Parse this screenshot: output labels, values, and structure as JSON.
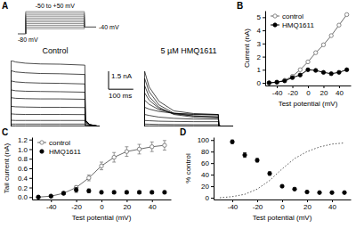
{
  "chart_data": [
    {
      "type": "protocol",
      "label": "A",
      "x": [
        -40,
        0,
        300,
        360
      ],
      "hold": -80,
      "steps": [
        -50,
        -40,
        -30,
        -20,
        -10,
        0,
        10,
        20,
        30,
        40,
        50
      ],
      "tail": -40,
      "hold_label": "-80 mV",
      "step_label": "-50 to +50 mV",
      "tail_label": "-40 mV"
    },
    {
      "type": "line",
      "title": "Control",
      "tick_labels": false,
      "color": "#000000",
      "scale_bar": {
        "y": 1.5,
        "y_label": "1.5 nA",
        "x": 100,
        "x_label": "100 ms"
      },
      "x": [
        0,
        2,
        20,
        60,
        120,
        200,
        300,
        302,
        320,
        360
      ],
      "series": [
        {
          "values": [
            0,
            0,
            0,
            0,
            0,
            0,
            0,
            0,
            0,
            0
          ]
        },
        {
          "values": [
            0,
            0.05,
            0.05,
            0.05,
            0.05,
            0.05,
            0.05,
            0.01,
            0,
            0
          ]
        },
        {
          "values": [
            0,
            0.2,
            0.2,
            0.2,
            0.2,
            0.2,
            0.2,
            0.04,
            0.01,
            0
          ]
        },
        {
          "values": [
            0,
            0.52,
            0.5,
            0.5,
            0.5,
            0.5,
            0.5,
            0.1,
            0.03,
            0
          ]
        },
        {
          "values": [
            0,
            1.05,
            1.02,
            1.0,
            1.0,
            1.0,
            0.99,
            0.2,
            0.06,
            0
          ]
        },
        {
          "values": [
            0,
            1.68,
            1.64,
            1.62,
            1.6,
            1.6,
            1.58,
            0.33,
            0.1,
            0
          ]
        },
        {
          "values": [
            0,
            2.4,
            2.35,
            2.32,
            2.3,
            2.3,
            2.27,
            0.42,
            0.13,
            0
          ]
        },
        {
          "values": [
            0,
            3.05,
            2.98,
            2.94,
            2.92,
            2.9,
            2.86,
            0.48,
            0.14,
            0
          ]
        },
        {
          "values": [
            0,
            3.8,
            3.72,
            3.66,
            3.62,
            3.6,
            3.55,
            0.5,
            0.15,
            0
          ]
        },
        {
          "values": [
            0,
            4.65,
            4.55,
            4.48,
            4.42,
            4.4,
            4.34,
            0.52,
            0.16,
            0
          ]
        },
        {
          "values": [
            0,
            5.5,
            5.38,
            5.28,
            5.22,
            5.2,
            5.12,
            0.54,
            0.16,
            0
          ]
        }
      ]
    },
    {
      "type": "line",
      "title": "5 µM HMQ1611",
      "tick_labels": false,
      "color": "#000000",
      "x": [
        0,
        2,
        20,
        60,
        120,
        200,
        300,
        302,
        320,
        360
      ],
      "series": [
        {
          "values": [
            0,
            0,
            0,
            0,
            0,
            0,
            0,
            0,
            0,
            0
          ]
        },
        {
          "values": [
            0,
            0.05,
            0.05,
            0.05,
            0.05,
            0.05,
            0.05,
            0.01,
            0,
            0
          ]
        },
        {
          "values": [
            0,
            0.2,
            0.19,
            0.17,
            0.16,
            0.15,
            0.15,
            0.03,
            0.01,
            0
          ]
        },
        {
          "values": [
            0,
            0.5,
            0.48,
            0.44,
            0.42,
            0.4,
            0.4,
            0.05,
            0.02,
            0
          ]
        },
        {
          "values": [
            0,
            1.0,
            0.92,
            0.78,
            0.68,
            0.62,
            0.6,
            0.05,
            0.02,
            0
          ]
        },
        {
          "values": [
            0,
            1.6,
            1.45,
            1.25,
            1.1,
            1.02,
            1.0,
            0.05,
            0.02,
            0
          ]
        },
        {
          "values": [
            0,
            2.2,
            1.85,
            1.4,
            1.1,
            1.0,
            0.95,
            0.05,
            0.02,
            0
          ]
        },
        {
          "values": [
            0,
            2.8,
            2.2,
            1.5,
            1.05,
            0.88,
            0.8,
            0.05,
            0.02,
            0
          ]
        },
        {
          "values": [
            0,
            3.4,
            2.5,
            1.6,
            1.0,
            0.78,
            0.7,
            0.05,
            0.02,
            0
          ]
        },
        {
          "values": [
            0,
            4.0,
            2.9,
            1.8,
            1.1,
            0.88,
            0.8,
            0.05,
            0.02,
            0
          ]
        },
        {
          "values": [
            0,
            4.6,
            3.3,
            2.1,
            1.3,
            1.08,
            1.0,
            0.05,
            0.02,
            0
          ]
        }
      ]
    },
    {
      "type": "line",
      "label": "B",
      "x_label": "Test potential (mV)",
      "y_label": "Current (nA)",
      "x": [
        -50,
        -40,
        -30,
        -20,
        -10,
        0,
        10,
        20,
        30,
        40,
        50
      ],
      "xlim": [
        -55,
        55
      ],
      "xticks": [
        -40,
        -20,
        0,
        20,
        40
      ],
      "ylim": [
        -0.2,
        5.5
      ],
      "yticks": [
        0,
        1,
        2,
        3,
        4,
        5
      ],
      "legend": "top-left",
      "series": [
        {
          "name": "control",
          "color": "#6b6b6b",
          "marker": "open_circle",
          "line_style": "solid",
          "values": [
            0,
            0.05,
            0.2,
            0.5,
            1.0,
            1.6,
            2.3,
            2.9,
            3.6,
            4.4,
            5.2
          ]
        },
        {
          "name": "HMQ1611",
          "color": "#000000",
          "marker": "circle",
          "line_style": "solid",
          "values": [
            0,
            0.05,
            0.15,
            0.4,
            0.6,
            1.0,
            0.95,
            0.8,
            0.7,
            0.8,
            1.0
          ]
        }
      ]
    },
    {
      "type": "line",
      "label": "C",
      "x_label": "Test potential (mV)",
      "y_label": "Tail current (nA)",
      "x": [
        -50,
        -40,
        -30,
        -20,
        -10,
        0,
        10,
        20,
        30,
        40,
        50
      ],
      "xlim": [
        -55,
        55
      ],
      "xticks": [
        -40,
        -20,
        0,
        20,
        40
      ],
      "ylim": [
        -0.05,
        1.25
      ],
      "yticks": [
        {
          "value": 0,
          "label": "0.0"
        },
        0.2,
        0.4,
        0.6,
        0.8,
        {
          "value": 1,
          "label": "1.0"
        },
        1.2
      ],
      "legend": "top-left",
      "series": [
        {
          "name": "control",
          "color": "#6b6b6b",
          "marker": "open_circle",
          "line_style": "solid",
          "values": [
            0,
            0.02,
            0.08,
            0.2,
            0.4,
            0.65,
            0.83,
            0.95,
            1.0,
            1.05,
            1.08
          ],
          "errors": [
            0.01,
            0.01,
            0.02,
            0.04,
            0.06,
            0.08,
            0.1,
            0.1,
            0.1,
            0.1,
            0.1
          ]
        },
        {
          "name": "HMQ1611",
          "color": "#000000",
          "marker": "circle",
          "line_style": "none",
          "values": [
            0,
            0.02,
            0.08,
            0.15,
            0.13,
            0.1,
            0.1,
            0.1,
            0.1,
            0.1,
            0.1
          ],
          "errors": [
            0.01,
            0.01,
            0.03,
            0.05,
            0.04,
            0.03,
            0.03,
            0.03,
            0.03,
            0.03,
            0.03
          ]
        }
      ]
    },
    {
      "type": "line",
      "label": "D",
      "y_label": "% control",
      "x_label": "Test potential (mV)",
      "x": [
        -50,
        -40,
        -30,
        -20,
        -10,
        0,
        10,
        20,
        30,
        40,
        50
      ],
      "xlim": [
        -55,
        55
      ],
      "xticks": [
        -40,
        -20,
        0,
        20,
        40
      ],
      "ylim": [
        -3,
        105
      ],
      "yticks": [
        0,
        20,
        40,
        60,
        80,
        100
      ],
      "series": [
        {
          "color": "#000000",
          "marker": "circle",
          "line_style": "none",
          "values": [
            null,
            97,
            74,
            65,
            42,
            20,
            15,
            10,
            9,
            9,
            9
          ],
          "errors": [
            null,
            3,
            4,
            3,
            3,
            2,
            2,
            1,
            1,
            1,
            1
          ]
        },
        {
          "color": "#555555",
          "marker": "none",
          "line_style": "dotted",
          "values": [
            0,
            2,
            6,
            15,
            30,
            50,
            68,
            80,
            88,
            93,
            95
          ]
        }
      ]
    }
  ]
}
